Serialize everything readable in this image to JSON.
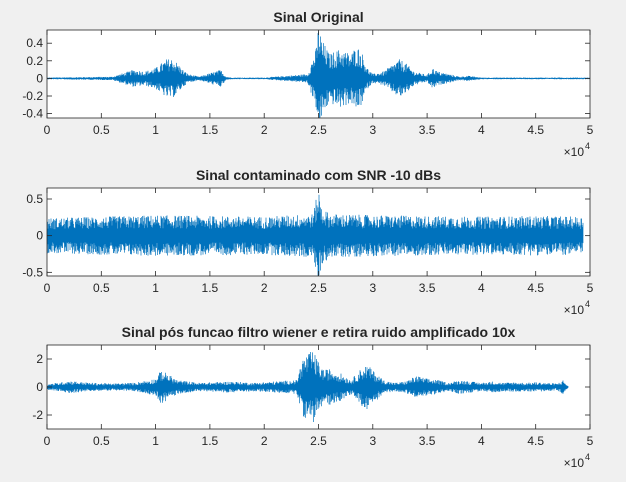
{
  "figure": {
    "background": "#f0f0f0"
  },
  "chart_data": [
    {
      "type": "line",
      "title": "Sinal Original",
      "xlabel": "",
      "ylabel": "",
      "x_range": [
        0,
        50000
      ],
      "ylim": [
        -0.45,
        0.55
      ],
      "x_ticks": [
        0,
        5000,
        10000,
        15000,
        20000,
        25000,
        30000,
        35000,
        40000,
        45000,
        50000
      ],
      "x_tick_labels": [
        "0",
        "0.5",
        "1",
        "1.5",
        "2",
        "2.5",
        "3",
        "3.5",
        "4",
        "4.5",
        "5"
      ],
      "y_ticks": [
        -0.4,
        -0.2,
        0,
        0.2,
        0.4
      ],
      "y_tick_labels": [
        "-0.4",
        "-0.2",
        "0",
        "0.2",
        "0.4"
      ],
      "x_multiplier": {
        "base": "×10",
        "exponent": "4"
      },
      "grid": false,
      "line_color": "#0072bd",
      "series": [
        {
          "x": [
            0,
            6000,
            7000,
            8000,
            9000,
            10000,
            11000,
            11500,
            12000,
            12500,
            13000,
            14000,
            16000,
            16500,
            17000,
            20000,
            22000,
            24000,
            24800,
            25000,
            25300,
            26000,
            27000,
            28000,
            28500,
            29000,
            29500,
            30000,
            31000,
            32000,
            32500,
            33000,
            33800,
            35000,
            35500,
            36000,
            37000,
            38000,
            38800,
            40000,
            50000
          ],
          "y": [
            0.01,
            0.02,
            0.06,
            0.1,
            0.08,
            0.12,
            0.22,
            0.23,
            0.18,
            0.1,
            0.05,
            0.02,
            0.1,
            0.02,
            0.01,
            0.01,
            0.03,
            0.05,
            0.35,
            0.62,
            0.45,
            0.28,
            0.34,
            0.28,
            0.38,
            0.3,
            0.12,
            0.05,
            0.08,
            0.18,
            0.22,
            0.18,
            0.08,
            0.04,
            0.12,
            0.08,
            0.05,
            0.02,
            0.03,
            0.01,
            0.01
          ]
        }
      ]
    },
    {
      "type": "line",
      "title": "Sinal contaminado com SNR -10 dBs",
      "xlabel": "",
      "ylabel": "",
      "x_range": [
        0,
        50000
      ],
      "ylim": [
        -0.55,
        0.65
      ],
      "x_ticks": [
        0,
        5000,
        10000,
        15000,
        20000,
        25000,
        30000,
        35000,
        40000,
        45000,
        50000
      ],
      "x_tick_labels": [
        "0",
        "0.5",
        "1",
        "1.5",
        "2",
        "2.5",
        "3",
        "3.5",
        "4",
        "4.5",
        "5"
      ],
      "y_ticks": [
        -0.5,
        0,
        0.5
      ],
      "y_tick_labels": [
        "-0.5",
        "0",
        "0.5"
      ],
      "x_multiplier": {
        "base": "×10",
        "exponent": "4"
      },
      "grid": false,
      "line_color": "#0072bd",
      "series": [
        {
          "x": [
            0,
            5000,
            10000,
            15000,
            20000,
            24500,
            25000,
            25300,
            26000,
            30000,
            35000,
            40000,
            45000,
            49400
          ],
          "y": [
            0.24,
            0.26,
            0.28,
            0.27,
            0.26,
            0.3,
            0.65,
            0.4,
            0.3,
            0.28,
            0.27,
            0.26,
            0.27,
            0.26
          ]
        }
      ]
    },
    {
      "type": "line",
      "title": "Sinal pós funcao filtro wiener e retira ruido amplificado 10x",
      "xlabel": "",
      "ylabel": "",
      "x_range": [
        0,
        50000
      ],
      "ylim": [
        -3,
        3
      ],
      "x_ticks": [
        0,
        5000,
        10000,
        15000,
        20000,
        25000,
        30000,
        35000,
        40000,
        45000,
        50000
      ],
      "x_tick_labels": [
        "0",
        "0.5",
        "1",
        "1.5",
        "2",
        "2.5",
        "3",
        "3.5",
        "4",
        "4.5",
        "5"
      ],
      "y_ticks": [
        -2,
        0,
        2
      ],
      "y_tick_labels": [
        "-2",
        "0",
        "2"
      ],
      "x_multiplier": {
        "base": "×10",
        "exponent": "4"
      },
      "grid": false,
      "line_color": "#0072bd",
      "series": [
        {
          "x": [
            0,
            1000,
            2000,
            4000,
            6000,
            8000,
            10000,
            10500,
            11000,
            12000,
            14000,
            17000,
            19000,
            21000,
            23000,
            23500,
            24000,
            24500,
            25000,
            25500,
            26000,
            27000,
            28000,
            29000,
            29500,
            30000,
            31000,
            32000,
            33000,
            34000,
            35000,
            36000,
            37000,
            38000,
            39000,
            40000,
            41000,
            42000,
            43000,
            44000,
            45000,
            46000,
            47000,
            47500,
            48000
          ],
          "y": [
            0.2,
            0.3,
            0.45,
            0.3,
            0.25,
            0.3,
            0.6,
            1.2,
            1.0,
            0.5,
            0.3,
            0.4,
            0.3,
            0.4,
            0.5,
            2.0,
            2.4,
            2.6,
            1.8,
            1.2,
            1.3,
            1.0,
            0.5,
            1.4,
            1.6,
            1.2,
            0.5,
            0.3,
            0.4,
            0.8,
            0.6,
            0.5,
            0.3,
            0.5,
            0.4,
            0.3,
            0.4,
            0.3,
            0.35,
            0.3,
            0.35,
            0.3,
            0.25,
            0.5,
            0.05
          ]
        }
      ]
    }
  ]
}
